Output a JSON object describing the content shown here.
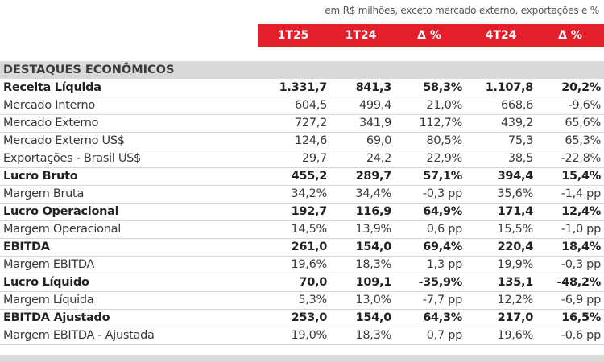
{
  "note": "em R$ milhões, exceto mercado externo, exportações e %",
  "columns": [
    "1T25",
    "1T24",
    "Δ %",
    "4T24",
    "Δ %"
  ],
  "section_title": "DESTAQUES ECONÔMICOS",
  "rows": [
    {
      "label": "Receita Líquida",
      "bold": true,
      "values": [
        "1.331,7",
        "841,3",
        "58,3%",
        "1.107,8",
        "20,2%"
      ]
    },
    {
      "label": "Mercado Interno",
      "bold": false,
      "values": [
        "604,5",
        "499,4",
        "21,0%",
        "668,6",
        "-9,6%"
      ]
    },
    {
      "label": "Mercado Externo",
      "bold": false,
      "values": [
        "727,2",
        "341,9",
        "112,7%",
        "439,2",
        "65,6%"
      ]
    },
    {
      "label": "Mercado Externo US$",
      "bold": false,
      "values": [
        "124,6",
        "69,0",
        "80,5%",
        "75,3",
        "65,3%"
      ]
    },
    {
      "label": "Exportações - Brasil US$",
      "bold": false,
      "values": [
        "29,7",
        "24,2",
        "22,9%",
        "38,5",
        "-22,8%"
      ]
    },
    {
      "label": "Lucro Bruto",
      "bold": true,
      "values": [
        "455,2",
        "289,7",
        "57,1%",
        "394,4",
        "15,4%"
      ]
    },
    {
      "label": "Margem Bruta",
      "bold": false,
      "values": [
        "34,2%",
        "34,4%",
        "-0,3 pp",
        "35,6%",
        "-1,4 pp"
      ]
    },
    {
      "label": "Lucro Operacional",
      "bold": true,
      "values": [
        "192,7",
        "116,9",
        "64,9%",
        "171,4",
        "12,4%"
      ]
    },
    {
      "label": "Margem Operacional",
      "bold": false,
      "values": [
        "14,5%",
        "13,9%",
        "0,6 pp",
        "15,5%",
        "-1,0 pp"
      ]
    },
    {
      "label": "EBITDA",
      "bold": true,
      "values": [
        "261,0",
        "154,0",
        "69,4%",
        "220,4",
        "18,4%"
      ]
    },
    {
      "label": "Margem EBITDA",
      "bold": false,
      "values": [
        "19,6%",
        "18,3%",
        "1,3 pp",
        "19,9%",
        "-0,3 pp"
      ]
    },
    {
      "label": "Lucro Líquido",
      "bold": true,
      "values": [
        "70,0",
        "109,1",
        "-35,9%",
        "135,1",
        "-48,2%"
      ]
    },
    {
      "label": "Margem Líquida",
      "bold": false,
      "values": [
        "5,3%",
        "13,0%",
        "-7,7 pp",
        "12,2%",
        "-6,9 pp"
      ]
    },
    {
      "label": "EBITDA Ajustado",
      "bold": true,
      "values": [
        "253,0",
        "154,0",
        "64,3%",
        "217,0",
        "16,5%"
      ]
    },
    {
      "label": "Margem EBITDA - Ajustada",
      "bold": false,
      "values": [
        "19,0%",
        "18,3%",
        "0,7 pp",
        "19,6%",
        "-0,6 pp"
      ]
    }
  ]
}
